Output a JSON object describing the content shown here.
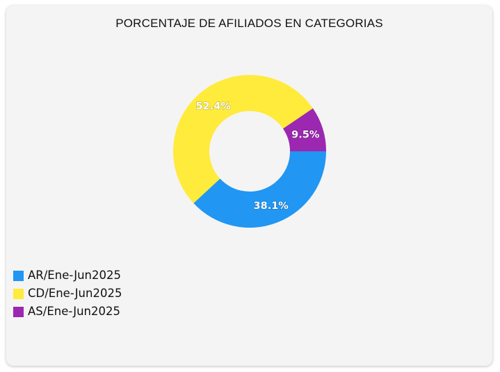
{
  "chart_data": {
    "type": "pie",
    "title": "PORCENTAJE DE AFILIADOS EN CATEGORIAS",
    "donut": true,
    "legend_position": "bottom-left",
    "categories": [
      "AR/Ene-Jun2025",
      "CD/Ene-Jun2025",
      "AS/Ene-Jun2025"
    ],
    "values": [
      38.1,
      52.4,
      9.5
    ],
    "value_labels": [
      "38.1%",
      "52.4%",
      "9.5%"
    ],
    "colors": [
      "#2196f3",
      "#ffeb3b",
      "#9c27b0"
    ]
  }
}
